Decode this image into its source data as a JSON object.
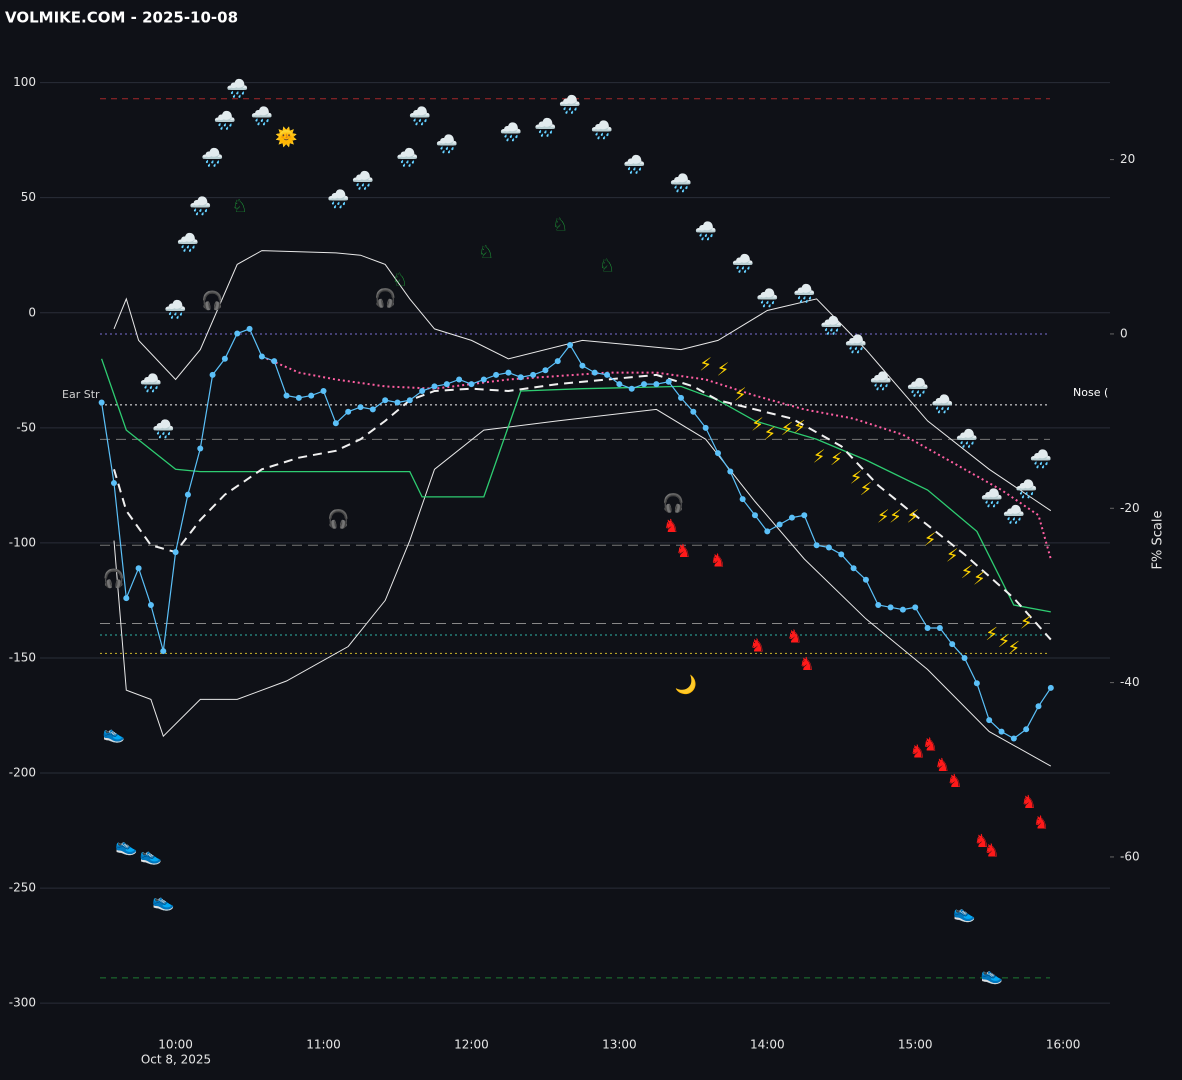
{
  "chart_data": {
    "type": "line",
    "title": "VOLMIKE.COM  - 2025-10-08",
    "date_label": "Oct 8, 2025",
    "right_axis_label": "F% Scale",
    "annotations": [
      "Ear Str",
      "Nose ("
    ],
    "xlim": [
      545,
      979
    ],
    "xticks": [
      {
        "value": 600,
        "label": "10:00"
      },
      {
        "value": 660,
        "label": "11:00"
      },
      {
        "value": 720,
        "label": "12:00"
      },
      {
        "value": 780,
        "label": "13:00"
      },
      {
        "value": 840,
        "label": "14:00"
      },
      {
        "value": 900,
        "label": "15:00"
      },
      {
        "value": 960,
        "label": "16:00"
      }
    ],
    "ylim": [
      -316,
      112
    ],
    "yticks": [
      -300,
      -250,
      -200,
      -150,
      -100,
      -50,
      0,
      50,
      100
    ],
    "y2lim": [
      -81,
      32
    ],
    "y2ticks": [
      -60,
      -40,
      -20,
      0,
      20
    ],
    "grid": true,
    "hlines": [
      {
        "value": 93,
        "color": "#a3282a",
        "dash": "6,5"
      },
      {
        "value": 0,
        "axis": "y2",
        "color": "#7a6fd0",
        "dash": "2,3"
      },
      {
        "value": -40,
        "color": "#f4f4f4",
        "dash": "2,3"
      },
      {
        "value": -55,
        "color": "#777777",
        "dash": "10,6"
      },
      {
        "value": -101,
        "color": "#777777",
        "dash": "10,6"
      },
      {
        "value": -135,
        "color": "#888888",
        "dash": "10,6"
      },
      {
        "value": -140,
        "color": "#2fb3a6",
        "dash": "2,3"
      },
      {
        "value": -148,
        "color": "#c9b22a",
        "dash": "2,3"
      },
      {
        "value": -289,
        "color": "#1f7a32",
        "dash": "6,5"
      }
    ],
    "series": [
      {
        "color": "#e8e8e8",
        "width": 1,
        "x": [
          575,
          580,
          585,
          600,
          610,
          625,
          635,
          665,
          675,
          685,
          695,
          705,
          720,
          735,
          765,
          805,
          820,
          840,
          860,
          880,
          905,
          930,
          955
        ],
        "values": [
          -7,
          6,
          -12,
          -29,
          -16,
          21,
          27,
          26,
          25,
          21,
          6,
          -7,
          -12,
          -20,
          -12,
          -16,
          -12,
          1,
          6,
          -16,
          -47,
          -68,
          -86
        ]
      },
      {
        "color": "#e8e8e8",
        "width": 1,
        "x": [
          575,
          580,
          590,
          595,
          610,
          625,
          645,
          670,
          685,
          695,
          705,
          725,
          755,
          795,
          815,
          835,
          855,
          880,
          905,
          930,
          955
        ],
        "values": [
          -99,
          -164,
          -168,
          -184,
          -168,
          -168,
          -160,
          -145,
          -125,
          -99,
          -68,
          -51,
          -47,
          -42,
          -55,
          -82,
          -107,
          -133,
          -155,
          -182,
          -197
        ]
      },
      {
        "color": "#2ecc71",
        "width": 1.3,
        "x": [
          570,
          580,
          600,
          610,
          695,
          700,
          725,
          740,
          765,
          805,
          820,
          835,
          860,
          880,
          905,
          925,
          940,
          955
        ],
        "values": [
          -20,
          -51,
          -68,
          -69,
          -69,
          -80,
          -80,
          -34,
          -33,
          -32,
          -38,
          -47,
          -55,
          -64,
          -77,
          -95,
          -127,
          -130
        ]
      },
      {
        "color": "#ff5fa2",
        "width": 2,
        "dash": "2,3",
        "x": [
          635,
          650,
          665,
          685,
          705,
          735,
          775,
          795,
          815,
          835,
          855,
          875,
          895,
          915,
          935,
          950,
          955
        ],
        "values": [
          -19,
          -26,
          -29,
          -32,
          -33,
          -29,
          -26,
          -26,
          -29,
          -36,
          -42,
          -46,
          -53,
          -65,
          -77,
          -88,
          -107
        ]
      },
      {
        "color": "#f0f0f0",
        "width": 2,
        "dash": "9,6",
        "x": [
          575,
          580,
          590,
          600,
          610,
          620,
          635,
          650,
          665,
          675,
          685,
          695,
          705,
          720,
          735,
          755,
          775,
          795,
          810,
          820,
          835,
          850,
          870,
          885,
          900,
          920,
          940,
          955
        ],
        "values": [
          -68,
          -86,
          -101,
          -104,
          -90,
          -79,
          -68,
          -63,
          -60,
          -55,
          -47,
          -38,
          -34,
          -33,
          -34,
          -31,
          -29,
          -27,
          -32,
          -38,
          -42,
          -46,
          -58,
          -75,
          -88,
          -105,
          -124,
          -142
        ]
      },
      {
        "color": "#5bc0f8",
        "width": 1.2,
        "markers": true,
        "x": [
          570,
          575,
          580,
          585,
          590,
          595,
          600,
          605,
          610,
          615,
          620,
          625,
          630,
          635,
          640,
          645,
          650,
          655,
          660,
          665,
          670,
          675,
          680,
          685,
          690,
          695,
          700,
          705,
          710,
          715,
          720,
          725,
          730,
          735,
          740,
          745,
          750,
          755,
          760,
          765,
          770,
          775,
          780,
          785,
          790,
          795,
          800,
          805,
          810,
          815,
          820,
          825,
          830,
          835,
          840,
          845,
          850,
          855,
          860,
          865,
          870,
          875,
          880,
          885,
          890,
          895,
          900,
          905,
          910,
          915,
          920,
          925,
          930,
          935,
          940,
          945,
          950,
          955
        ],
        "values": [
          -39,
          -74,
          -124,
          -111,
          -127,
          -147,
          -104,
          -79,
          -59,
          -27,
          -20,
          -9,
          -7,
          -19,
          -21,
          -36,
          -37,
          -36,
          -34,
          -48,
          -43,
          -41,
          -42,
          -38,
          -39,
          -38,
          -34,
          -32,
          -31,
          -29,
          -31,
          -29,
          -27,
          -26,
          -28,
          -27,
          -25,
          -21,
          -14,
          -23,
          -26,
          -27,
          -31,
          -33,
          -31,
          -31,
          -30,
          -37,
          -43,
          -50,
          -61,
          -69,
          -81,
          -88,
          -95,
          -92,
          -89,
          -88,
          -101,
          -102,
          -105,
          -111,
          -116,
          -127,
          -128,
          -129,
          -128,
          -137,
          -137,
          -144,
          -150,
          -161,
          -177,
          -182,
          -185,
          -181,
          -171,
          -163
        ]
      }
    ],
    "emoji_series": [
      {
        "symbol": "🌧️",
        "color": "#ffffff",
        "x": [
          625,
          635,
          620,
          615,
          610,
          605,
          600,
          590,
          595,
          666,
          676,
          694,
          699,
          710,
          736,
          750,
          760,
          773,
          786,
          805,
          815,
          830,
          840,
          855,
          866,
          876,
          886,
          901,
          911,
          921,
          931,
          940,
          951,
          945
        ],
        "values": [
          97,
          85,
          83,
          67,
          46,
          30,
          1,
          -31,
          -51,
          49,
          57,
          67,
          85,
          73,
          78,
          80,
          90,
          79,
          64,
          56,
          35,
          21,
          6,
          8,
          -6,
          -14,
          -30,
          -33,
          -40,
          -55,
          -81,
          -88,
          -64,
          -77
        ]
      },
      {
        "symbol": "⚡",
        "color": "#ffd400",
        "x": [
          815,
          822,
          829,
          836,
          841,
          848,
          853,
          861,
          868,
          876,
          880,
          887,
          892,
          899,
          906,
          915,
          921,
          926,
          931,
          936,
          940,
          945
        ],
        "values": [
          -23,
          -25,
          -36,
          -49,
          -53,
          -51,
          -50,
          -63,
          -64,
          -72,
          -77,
          -89,
          -89,
          -89,
          -99,
          -106,
          -113,
          -116,
          -140,
          -143,
          -146,
          -135
        ]
      },
      {
        "symbol": "♞",
        "color": "#ff1a1a",
        "x": [
          801,
          806,
          820,
          836,
          851,
          856,
          901,
          906,
          911,
          916,
          927,
          931,
          946,
          951
        ],
        "values": [
          -93,
          -104,
          -108,
          -145,
          -141,
          -153,
          -191,
          -188,
          -197,
          -204,
          -230,
          -234,
          -213,
          -222
        ]
      },
      {
        "symbol": "♘",
        "color": "#1fa33a",
        "x": [
          626,
          726,
          756,
          775,
          691
        ],
        "values": [
          46,
          26,
          38,
          20,
          14
        ]
      },
      {
        "symbol": "👟",
        "color": "#9aa0a6",
        "x": [
          575,
          580,
          590,
          595,
          920,
          931
        ],
        "values": [
          -183,
          -232,
          -236,
          -256,
          -261,
          -288
        ]
      },
      {
        "symbol": "🎧",
        "color": "#dddddd",
        "x": [
          615,
          685,
          666,
          802,
          575
        ],
        "values": [
          5,
          6,
          -90,
          -83,
          -116
        ]
      },
      {
        "symbol": "🌞",
        "color": "#ffcc33",
        "x": [
          645
        ],
        "values": [
          76
        ]
      },
      {
        "symbol": "🌙",
        "color": "#ffd84a",
        "x": [
          807
        ],
        "values": [
          -162
        ]
      }
    ]
  }
}
